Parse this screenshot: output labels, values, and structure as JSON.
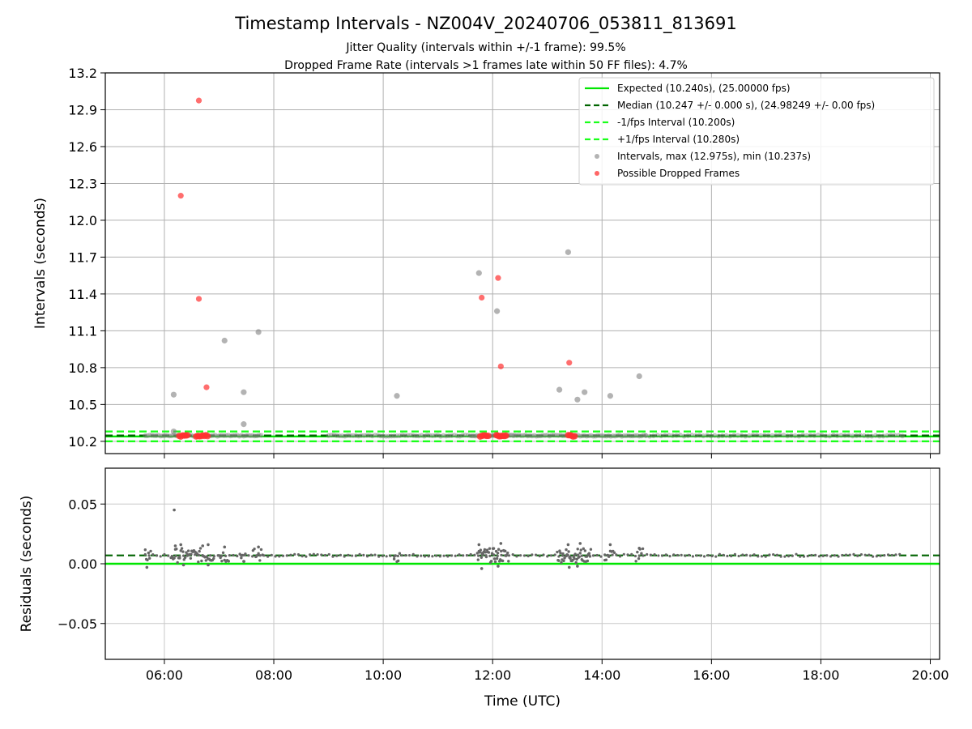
{
  "chart_data": {
    "type": "scatter",
    "title": "Timestamp Intervals - NZ004V_20240706_053811_813691",
    "subtitle_lines": [
      "Jitter Quality (intervals within +/-1 frame): 99.5%",
      "Dropped Frame Rate (intervals >1 frames late within 50 FF files): 4.7%"
    ],
    "xlabel": "Time (UTC)",
    "x_domain_hours": [
      4.92,
      20.17
    ],
    "x_ticks": [
      {
        "h": 6,
        "label": "06:00"
      },
      {
        "h": 8,
        "label": "08:00"
      },
      {
        "h": 10,
        "label": "10:00"
      },
      {
        "h": 12,
        "label": "12:00"
      },
      {
        "h": 14,
        "label": "14:00"
      },
      {
        "h": 16,
        "label": "16:00"
      },
      {
        "h": 18,
        "label": "18:00"
      },
      {
        "h": 20,
        "label": "20:00"
      }
    ],
    "grid": true,
    "top_panel": {
      "ylabel": "Intervals (seconds)",
      "ylim": [
        10.1,
        13.2
      ],
      "y_ticks": [
        {
          "v": 10.2,
          "label": "10.2"
        },
        {
          "v": 10.5,
          "label": "10.5"
        },
        {
          "v": 10.8,
          "label": "10.8"
        },
        {
          "v": 11.1,
          "label": "11.1"
        },
        {
          "v": 11.4,
          "label": "11.4"
        },
        {
          "v": 11.7,
          "label": "11.7"
        },
        {
          "v": 12.0,
          "label": "12.0"
        },
        {
          "v": 12.3,
          "label": "12.3"
        },
        {
          "v": 12.6,
          "label": "12.6"
        },
        {
          "v": 12.9,
          "label": "12.9"
        },
        {
          "v": 13.2,
          "label": "13.2"
        }
      ],
      "reference_lines": [
        {
          "name": "Expected (10.240s), (25.00000 fps)",
          "y": 10.24,
          "color": "#00e600",
          "dash": "solid"
        },
        {
          "name": "Median (10.247 +/- 0.000 s), (24.98249 +/- 0.00 fps)",
          "y": 10.247,
          "color": "#006400",
          "dash": "dashed"
        },
        {
          "name": "-1/fps Interval (10.200s)",
          "y": 10.2,
          "color": "#1aff1a",
          "dash": "dashed"
        },
        {
          "name": "+1/fps Interval (10.280s)",
          "y": 10.28,
          "color": "#1aff1a",
          "dash": "dashed"
        }
      ],
      "interval_series": {
        "name": "Intervals, max (12.975s), min (10.237s)",
        "color": "#808080",
        "points": [
          {
            "t": 6.17,
            "v": 10.58
          },
          {
            "t": 6.17,
            "v": 10.28
          },
          {
            "t": 7.1,
            "v": 11.02
          },
          {
            "t": 7.72,
            "v": 11.09
          },
          {
            "t": 7.45,
            "v": 10.6
          },
          {
            "t": 7.45,
            "v": 10.34
          },
          {
            "t": 10.25,
            "v": 10.57
          },
          {
            "t": 11.75,
            "v": 11.57
          },
          {
            "t": 12.08,
            "v": 11.26
          },
          {
            "t": 13.22,
            "v": 10.62
          },
          {
            "t": 13.38,
            "v": 11.74
          },
          {
            "t": 13.55,
            "v": 10.54
          },
          {
            "t": 13.68,
            "v": 10.6
          },
          {
            "t": 14.15,
            "v": 10.57
          },
          {
            "t": 14.68,
            "v": 10.73
          }
        ]
      },
      "baseline_runs": [
        {
          "start": 5.65,
          "end": 7.8,
          "v": 10.246,
          "step": 0.04
        },
        {
          "start": 9.0,
          "end": 11.6,
          "v": 10.246,
          "step": 0.05
        },
        {
          "start": 11.6,
          "end": 12.4,
          "v": 10.246,
          "step": 0.03
        },
        {
          "start": 12.4,
          "end": 14.8,
          "v": 10.246,
          "step": 0.04
        },
        {
          "start": 14.8,
          "end": 19.5,
          "v": 10.246,
          "step": 0.07
        }
      ],
      "dropped_series": {
        "name": "Possible Dropped Frames",
        "color": "#ff4040",
        "points": [
          {
            "t": 6.63,
            "v": 12.975
          },
          {
            "t": 6.3,
            "v": 12.2
          },
          {
            "t": 6.63,
            "v": 11.36
          },
          {
            "t": 6.77,
            "v": 10.64
          },
          {
            "t": 11.8,
            "v": 11.37
          },
          {
            "t": 12.1,
            "v": 11.53
          },
          {
            "t": 12.15,
            "v": 10.81
          },
          {
            "t": 13.4,
            "v": 10.84
          }
        ],
        "clusters": [
          {
            "start": 6.27,
            "end": 6.45,
            "v": 10.245,
            "step": 0.03
          },
          {
            "start": 6.58,
            "end": 6.8,
            "v": 10.245,
            "step": 0.03
          },
          {
            "start": 11.77,
            "end": 11.92,
            "v": 10.245,
            "step": 0.03
          },
          {
            "start": 12.07,
            "end": 12.27,
            "v": 10.245,
            "step": 0.025
          },
          {
            "start": 13.38,
            "end": 13.52,
            "v": 10.245,
            "step": 0.03
          }
        ]
      }
    },
    "bottom_panel": {
      "ylabel": "Residuals (seconds)",
      "ylim": [
        -0.08,
        0.08
      ],
      "y_ticks": [
        {
          "v": 0.05,
          "label": "0.05"
        },
        {
          "v": 0.0,
          "label": "0.00"
        },
        {
          "v": -0.05,
          "label": "−0.05"
        }
      ],
      "zero_line_color": "#00e600",
      "median_residual": 0.007,
      "median_line_color": "#006400",
      "residual_color": "#666666",
      "outliers": [
        {
          "t": 6.18,
          "r": 0.045
        },
        {
          "t": 5.68,
          "r": -0.003
        },
        {
          "t": 6.2,
          "r": 0.015
        },
        {
          "t": 6.3,
          "r": 0.016
        },
        {
          "t": 6.7,
          "r": 0.015
        },
        {
          "t": 6.8,
          "r": 0.016
        },
        {
          "t": 7.1,
          "r": 0.014
        },
        {
          "t": 7.72,
          "r": 0.014
        },
        {
          "t": 11.75,
          "r": 0.016
        },
        {
          "t": 11.8,
          "r": -0.004
        },
        {
          "t": 12.15,
          "r": 0.017
        },
        {
          "t": 12.1,
          "r": -0.002
        },
        {
          "t": 13.38,
          "r": 0.016
        },
        {
          "t": 13.4,
          "r": -0.003
        },
        {
          "t": 13.6,
          "r": 0.017
        },
        {
          "t": 13.55,
          "r": -0.002
        },
        {
          "t": 14.15,
          "r": 0.016
        },
        {
          "t": 14.68,
          "r": 0.013
        },
        {
          "t": 6.8,
          "r": -0.001
        },
        {
          "t": 6.35,
          "r": -0.001
        },
        {
          "t": 7.45,
          "r": 0.002
        }
      ],
      "clusters": [
        {
          "start": 5.65,
          "end": 5.75,
          "step": 0.02
        },
        {
          "start": 6.12,
          "end": 6.9,
          "step": 0.02
        },
        {
          "start": 7.0,
          "end": 7.2,
          "step": 0.025
        },
        {
          "start": 7.38,
          "end": 7.5,
          "step": 0.025
        },
        {
          "start": 7.62,
          "end": 7.8,
          "step": 0.025
        },
        {
          "start": 10.2,
          "end": 10.3,
          "step": 0.025
        },
        {
          "start": 11.72,
          "end": 12.3,
          "step": 0.015
        },
        {
          "start": 13.18,
          "end": 13.8,
          "step": 0.015
        },
        {
          "start": 14.05,
          "end": 14.25,
          "step": 0.025
        },
        {
          "start": 14.62,
          "end": 14.75,
          "step": 0.025
        }
      ],
      "sparse_run": {
        "start": 5.65,
        "end": 19.5,
        "step": 0.07
      }
    }
  }
}
